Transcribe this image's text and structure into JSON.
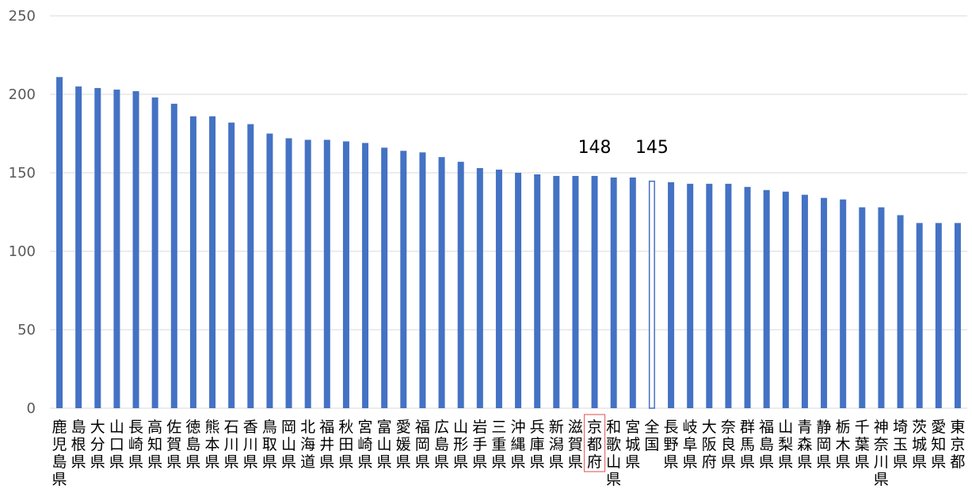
{
  "chart_data": {
    "type": "bar",
    "title": "",
    "xlabel": "",
    "ylabel": "",
    "ylim": [
      0,
      250
    ],
    "y_ticks": [
      "0",
      "50",
      "100",
      "150",
      "200",
      "250"
    ],
    "grid": true,
    "legend": "none",
    "categories": [
      "鹿児島県",
      "島根県",
      "大分県",
      "山口県",
      "長崎県",
      "高知県",
      "佐賀県",
      "徳島県",
      "熊本県",
      "石川県",
      "香川県",
      "鳥取県",
      "岡山県",
      "北海道",
      "福井県",
      "秋田県",
      "宮崎県",
      "富山県",
      "愛媛県",
      "福岡県",
      "広島県",
      "山形県",
      "岩手県",
      "三重県",
      "沖縄県",
      "兵庫県",
      "新潟県",
      "滋賀県",
      "京都府",
      "和歌山県",
      "宮城県",
      "全国",
      "長野県",
      "岐阜県",
      "大阪府",
      "奈良県",
      "群馬県",
      "福島県",
      "山梨県",
      "青森県",
      "静岡県",
      "栃木県",
      "千葉県",
      "神奈川県",
      "埼玉県",
      "茨城県",
      "愛知県",
      "東京都"
    ],
    "values": [
      211,
      205,
      204,
      203,
      202,
      198,
      194,
      186,
      186,
      182,
      181,
      175,
      172,
      171,
      171,
      170,
      169,
      166,
      164,
      163,
      160,
      157,
      153,
      152,
      150,
      149,
      148,
      148,
      148,
      147,
      147,
      145,
      144,
      143,
      143,
      143,
      141,
      139,
      138,
      136,
      134,
      133,
      128,
      128,
      123,
      118,
      118,
      118
    ],
    "data_labels": [
      {
        "category": "京都府",
        "text": "148"
      },
      {
        "category": "全国",
        "text": "145"
      }
    ],
    "highlight_outline_category": "全国",
    "boxed_label_category": "京都府",
    "colors": {
      "bar": "#4472c4",
      "highlight_bar_fill": "#ffffff",
      "highlight_bar_stroke": "#4472c4",
      "label_box": "#e46b6b",
      "grid": "#d9d9d9",
      "tick_text": "#595959"
    }
  }
}
